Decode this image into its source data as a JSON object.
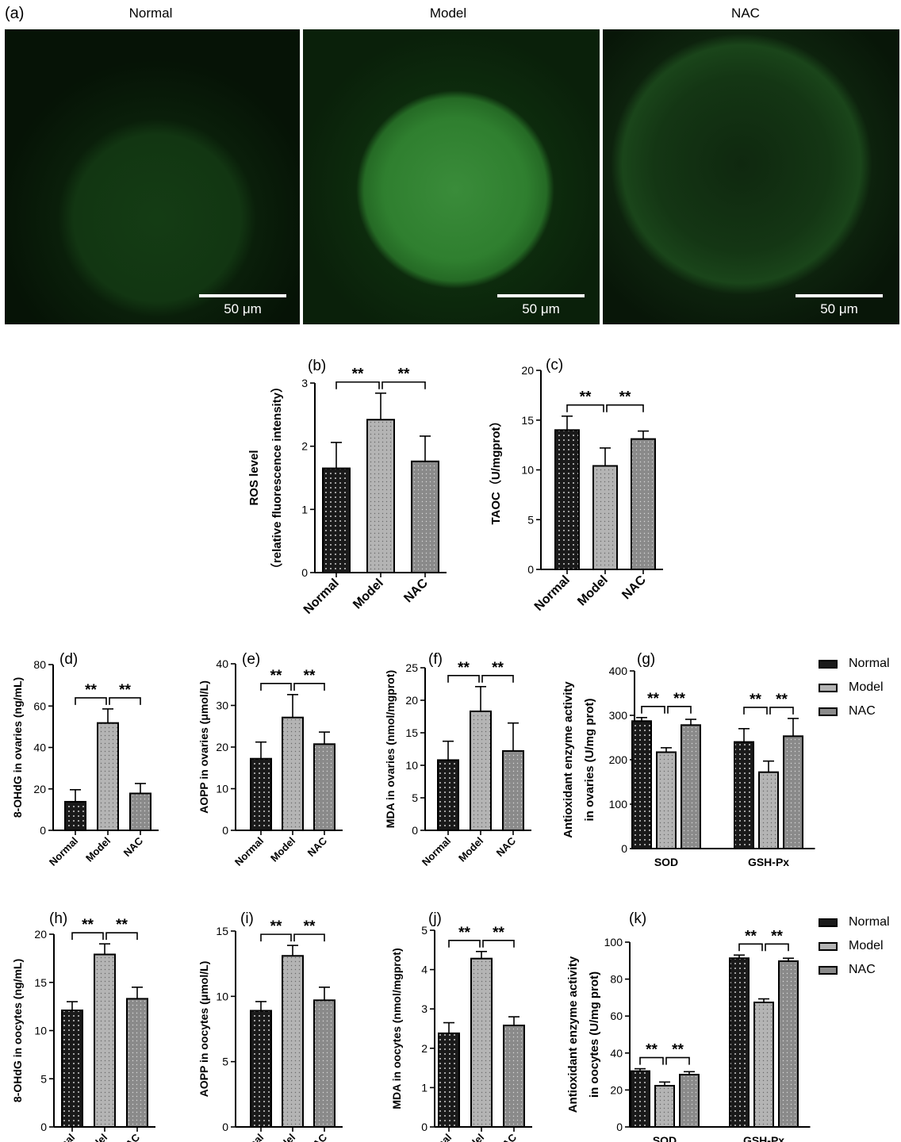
{
  "panel_a": {
    "label": "(a)",
    "images": [
      {
        "title": "Normal",
        "scale": "50 μm"
      },
      {
        "title": "Model",
        "scale": "50 μm"
      },
      {
        "title": "NAC",
        "scale": "50 μm"
      }
    ]
  },
  "colors": {
    "normal_fill": "#1a1a1a",
    "model_fill": "#b4b4b4",
    "nac_fill": "#8a8a8a",
    "fluorescence": "#2f9a2f",
    "background": "#061206"
  },
  "legends": [
    {
      "items": [
        "Normal",
        "Model",
        "NAC"
      ]
    },
    {
      "items": [
        "Normal",
        "Model",
        "NAC"
      ]
    }
  ],
  "chart_data": [
    {
      "id": "b",
      "label": "(b)",
      "type": "bar",
      "categories": [
        "Normal",
        "Model",
        "NAC"
      ],
      "values": [
        1.65,
        2.42,
        1.76
      ],
      "errors": [
        0.41,
        0.42,
        0.4
      ],
      "ylim": [
        0,
        3
      ],
      "yticks": [
        0,
        1,
        2,
        3
      ],
      "ylabel": [
        "ROS  level",
        "（relative fluorescence intensity）"
      ],
      "sig": [
        "**",
        "**"
      ]
    },
    {
      "id": "c",
      "label": "(c)",
      "type": "bar",
      "categories": [
        "Normal",
        "Model",
        "NAC"
      ],
      "values": [
        14.0,
        10.4,
        13.1
      ],
      "errors": [
        1.4,
        1.8,
        0.8
      ],
      "ylim": [
        0,
        20
      ],
      "yticks": [
        0,
        5,
        10,
        15,
        20
      ],
      "ylabel": [
        "TAOC（U/mgprot）"
      ],
      "sig": [
        "**",
        "**"
      ]
    },
    {
      "id": "d",
      "label": "(d)",
      "type": "bar",
      "categories": [
        "Normal",
        "Model",
        "NAC"
      ],
      "values": [
        13.8,
        51.8,
        17.8
      ],
      "errors": [
        5.8,
        6.8,
        4.8
      ],
      "ylim": [
        0,
        80
      ],
      "yticks": [
        0,
        20,
        40,
        60,
        80
      ],
      "ylabel": [
        "8-OHdG in ovaries (ng/mL)"
      ],
      "sig": [
        "**",
        "**"
      ]
    },
    {
      "id": "e",
      "label": "(e)",
      "type": "bar",
      "categories": [
        "Normal",
        "Model",
        "NAC"
      ],
      "values": [
        17.2,
        27.1,
        20.7
      ],
      "errors": [
        4.0,
        5.5,
        2.9
      ],
      "ylim": [
        0,
        40
      ],
      "yticks": [
        0,
        10,
        20,
        30,
        40
      ],
      "ylabel": [
        "AOPP in ovaries (μmol/L)"
      ],
      "sig": [
        "**",
        "**"
      ]
    },
    {
      "id": "f",
      "label": "(f)",
      "type": "bar",
      "categories": [
        "Normal",
        "Model",
        "NAC"
      ],
      "values": [
        10.8,
        18.3,
        12.2
      ],
      "errors": [
        2.9,
        3.8,
        4.3
      ],
      "ylim": [
        0,
        25
      ],
      "yticks": [
        0,
        5,
        10,
        15,
        20,
        25
      ],
      "ylabel": [
        "MDA in ovaries (nmol/mgprot)"
      ],
      "sig": [
        "**",
        "**"
      ]
    },
    {
      "id": "g",
      "label": "(g)",
      "type": "bar",
      "categories": [
        "SOD",
        "GSH-Px"
      ],
      "series": [
        {
          "name": "Normal",
          "values": [
            287,
            240
          ],
          "errors": [
            8,
            30
          ]
        },
        {
          "name": "Model",
          "values": [
            217,
            172
          ],
          "errors": [
            10,
            25
          ]
        },
        {
          "name": "NAC",
          "values": [
            278,
            253
          ],
          "errors": [
            13,
            40
          ]
        }
      ],
      "ylim": [
        0,
        400
      ],
      "yticks": [
        0,
        100,
        200,
        300,
        400
      ],
      "ylabel": [
        "Antioxidant enzyme activity",
        "in ovaries (U/mg prot)"
      ],
      "sig": [
        "**",
        "**",
        "**",
        "**"
      ]
    },
    {
      "id": "h",
      "label": "(h)",
      "type": "bar",
      "categories": [
        "Normal",
        "Model",
        "NAC"
      ],
      "values": [
        12.1,
        17.9,
        13.3
      ],
      "errors": [
        0.9,
        1.1,
        1.2
      ],
      "ylim": [
        0,
        20
      ],
      "yticks": [
        0,
        5,
        10,
        15,
        20
      ],
      "ylabel": [
        "8-OHdG in oocytes (ng/mL)"
      ],
      "sig": [
        "**",
        "**"
      ]
    },
    {
      "id": "i",
      "label": "(i)",
      "type": "bar",
      "categories": [
        "Normal",
        "Model",
        "NAC"
      ],
      "values": [
        8.9,
        13.1,
        9.7
      ],
      "errors": [
        0.7,
        0.8,
        1.0
      ],
      "ylim": [
        0,
        15
      ],
      "yticks": [
        0,
        5,
        10,
        15
      ],
      "ylabel": [
        "AOPP in oocytes (μmol/L)"
      ],
      "sig": [
        "**",
        "**"
      ]
    },
    {
      "id": "j",
      "label": "(j)",
      "type": "bar",
      "categories": [
        "Normal",
        "Model",
        "NAC"
      ],
      "values": [
        2.38,
        4.28,
        2.58
      ],
      "errors": [
        0.27,
        0.18,
        0.22
      ],
      "ylim": [
        0,
        5
      ],
      "yticks": [
        0,
        1,
        2,
        3,
        4,
        5
      ],
      "ylabel": [
        "MDA in oocytes (nmol/mgprot)"
      ],
      "sig": [
        "**",
        "**"
      ]
    },
    {
      "id": "k",
      "label": "(k)",
      "type": "bar",
      "categories": [
        "SOD",
        "GSH-Px"
      ],
      "series": [
        {
          "name": "Normal",
          "values": [
            30.2,
            91.3
          ],
          "errors": [
            1.3,
            1.7
          ]
        },
        {
          "name": "Model",
          "values": [
            22.3,
            67.4
          ],
          "errors": [
            2.0,
            1.9
          ]
        },
        {
          "name": "NAC",
          "values": [
            28.3,
            89.7
          ],
          "errors": [
            1.6,
            1.6
          ]
        }
      ],
      "ylim": [
        0,
        100
      ],
      "yticks": [
        0,
        20,
        40,
        60,
        80,
        100
      ],
      "ylabel": [
        "Antioxidant enzyme activity",
        "in oocytes (U/mg prot)"
      ],
      "sig": [
        "**",
        "**",
        "**",
        "**"
      ]
    }
  ]
}
